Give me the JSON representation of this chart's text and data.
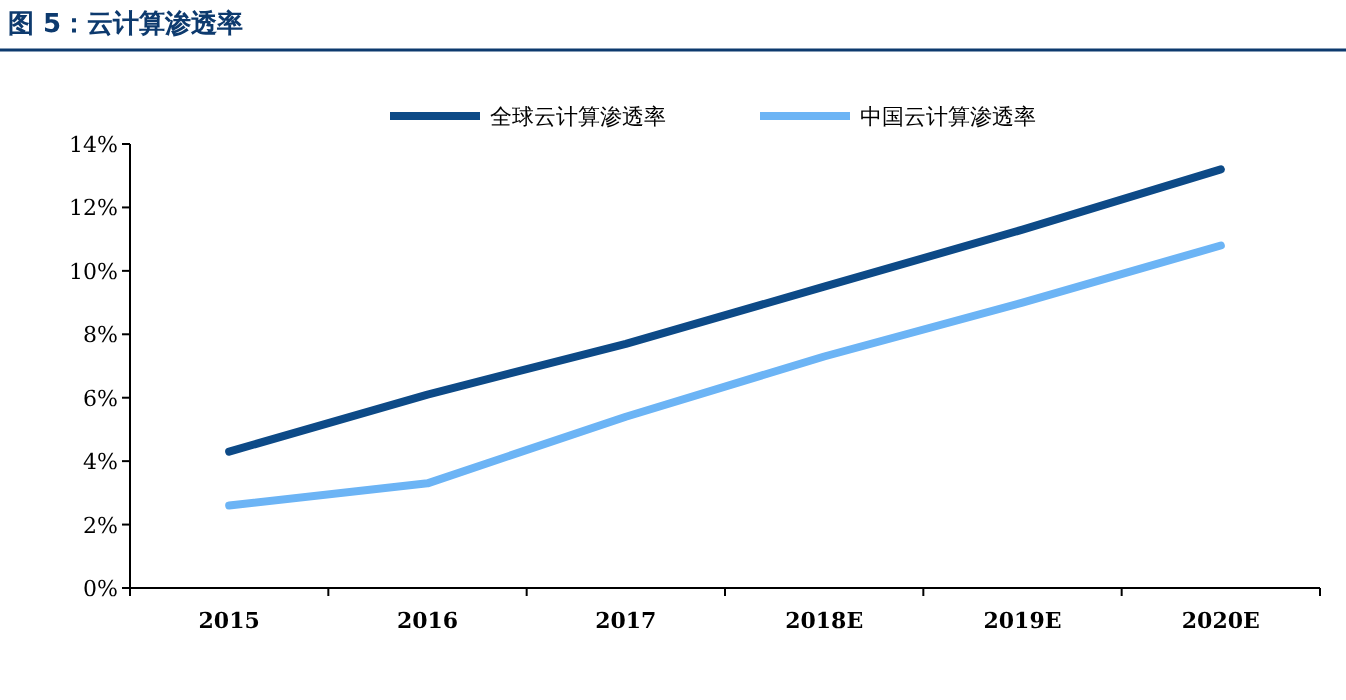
{
  "chart_data": {
    "type": "line",
    "title": "图 5：云计算渗透率",
    "categories": [
      "2015",
      "2016",
      "2017",
      "2018E",
      "2019E",
      "2020E"
    ],
    "series": [
      {
        "name": "全球云计算渗透率",
        "color": "#0d4a87",
        "values": [
          4.3,
          6.1,
          7.7,
          9.5,
          11.3,
          13.2
        ]
      },
      {
        "name": "中国云计算渗透率",
        "color": "#6cb4f5",
        "values": [
          2.6,
          3.3,
          5.4,
          7.3,
          9.0,
          10.8
        ]
      }
    ],
    "ylim": [
      0,
      14
    ],
    "yticks": [
      {
        "value": 0,
        "label": "0%"
      },
      {
        "value": 2,
        "label": "2%"
      },
      {
        "value": 4,
        "label": "4%"
      },
      {
        "value": 6,
        "label": "6%"
      },
      {
        "value": 8,
        "label": "8%"
      },
      {
        "value": 10,
        "label": "10%"
      },
      {
        "value": 12,
        "label": "12%"
      },
      {
        "value": 14,
        "label": "14%"
      }
    ],
    "legend": "top",
    "grid": false
  }
}
